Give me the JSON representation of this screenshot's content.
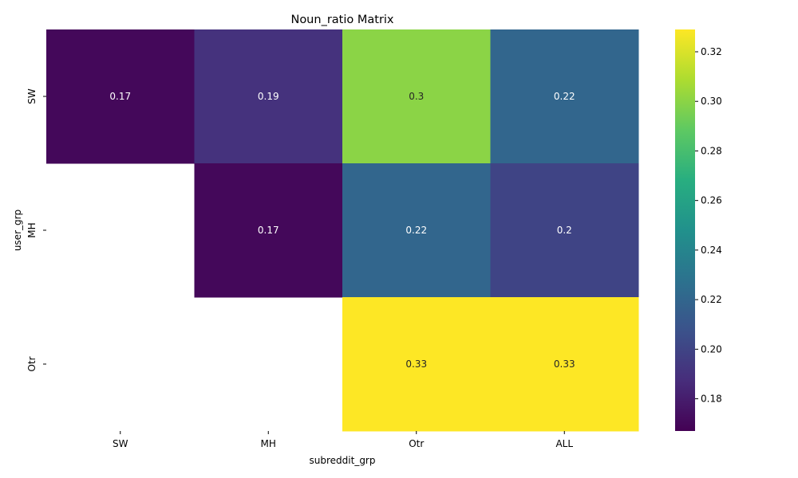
{
  "chart_data": {
    "type": "heatmap",
    "title": "Noun_ratio Matrix",
    "xlabel": "subreddit_grp",
    "ylabel": "user_grp",
    "x_categories": [
      "SW",
      "MH",
      "Otr",
      "ALL"
    ],
    "y_categories": [
      "SW",
      "MH",
      "Otr"
    ],
    "values": [
      [
        0.17,
        0.19,
        0.3,
        0.22
      ],
      [
        null,
        0.17,
        0.22,
        0.2
      ],
      [
        null,
        null,
        0.33,
        0.33
      ]
    ],
    "colormap": "viridis",
    "color_range": [
      0.167,
      0.329
    ],
    "colorbar_ticks": [
      0.18,
      0.2,
      0.22,
      0.24,
      0.26,
      0.28,
      0.3,
      0.32
    ],
    "colorbar_tick_labels": [
      "0.18",
      "0.20",
      "0.22",
      "0.24",
      "0.26",
      "0.28",
      "0.30",
      "0.32"
    ]
  }
}
